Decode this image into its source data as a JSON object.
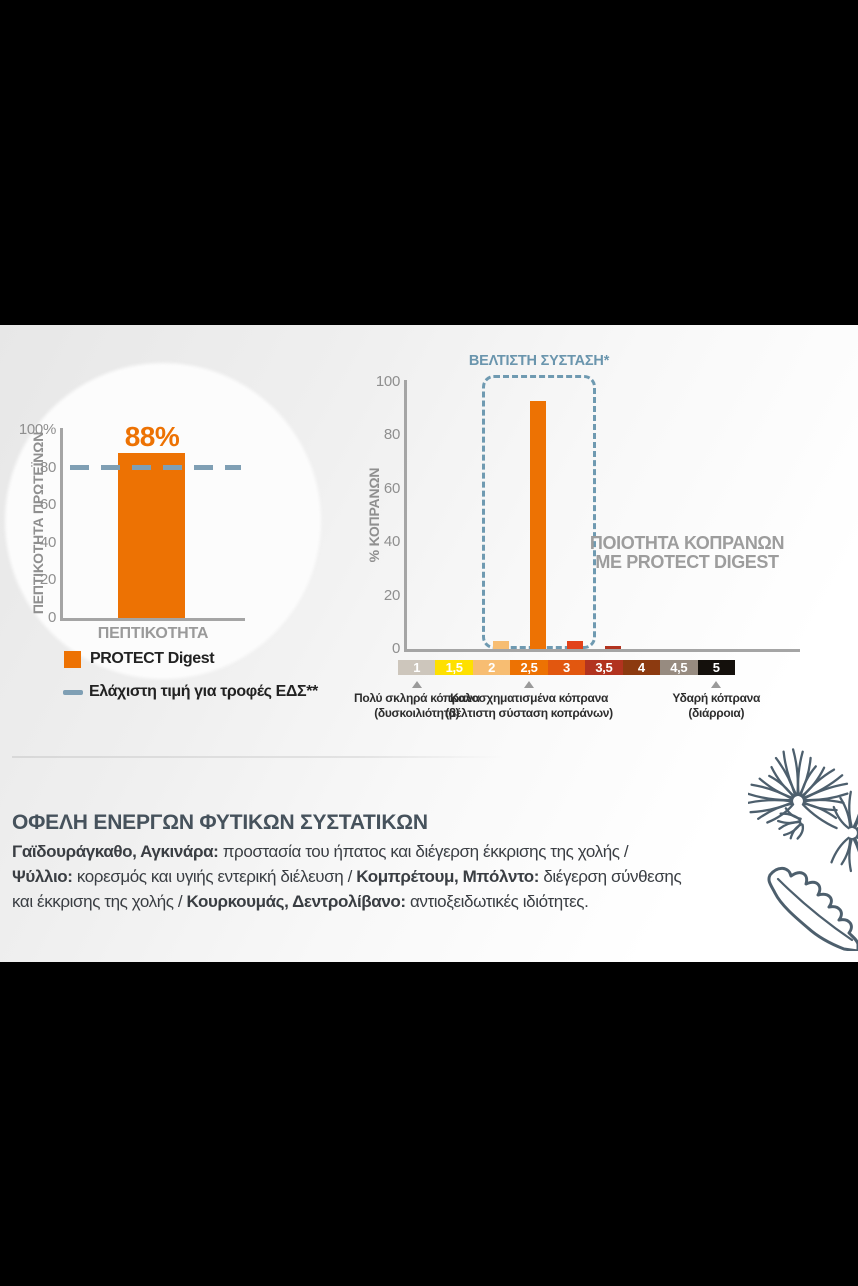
{
  "colors": {
    "orange": "#ed7203",
    "light_orange": "#f7bd72",
    "red_orange": "#e2421a",
    "dark_red": "#b2331f",
    "yellow": "#fee000",
    "tan": "#cdc6bc",
    "brown": "#8c3a10",
    "gray_brown": "#978b80",
    "black_seg": "#14100c",
    "reference_blue": "#7f9fb4",
    "zone_blue": "#6f9ab1",
    "title_blue": "#6a95ad",
    "axis_gray": "#a5a5a5",
    "heading_slate": "#46525c",
    "thistle_ink": "#4d5f6d"
  },
  "chart_data": [
    {
      "type": "bar",
      "title": "",
      "categories": [
        "ΠΕΠΤΙΚΟΤΗΤΑ"
      ],
      "values": [
        88
      ],
      "bar_label": "88%",
      "bar_color": "#ed7203",
      "xlabel": "",
      "ylabel": "ΠΕΠΤΙΚΟΤΗΤΑ ΠΡΩΤΕΪΝΩΝ",
      "ylim": [
        0,
        100
      ],
      "yticks": [
        {
          "value": 0,
          "label": "0"
        },
        {
          "value": 20,
          "label": "20"
        },
        {
          "value": 40,
          "label": "40"
        },
        {
          "value": 60,
          "label": "60"
        },
        {
          "value": 80,
          "label": "80"
        },
        {
          "value": 100,
          "label": "100%"
        }
      ],
      "grid": false,
      "reference_line": {
        "value": 80,
        "style": "dashed",
        "color": "#7f9fb4",
        "label": "Ελάχιστη τιμή για τροφές ΕΔΣ**"
      },
      "legend": [
        {
          "label": "PROTECT Digest",
          "marker": "square",
          "color": "#ed7203"
        },
        {
          "label": "Ελάχιστη τιμή για τροφές ΕΔΣ**",
          "marker": "dash",
          "color": "#7f9fb4"
        }
      ],
      "legend_position": "bottom-left"
    },
    {
      "type": "bar",
      "title": "",
      "categories": [
        "1",
        "1,5",
        "2",
        "2,5",
        "3",
        "3,5",
        "4",
        "4,5",
        "5"
      ],
      "values": [
        0,
        0,
        3,
        93,
        3,
        1,
        0,
        0,
        0
      ],
      "bar_colors": [
        "",
        "",
        "#f7bd72",
        "#ed7203",
        "#e2421a",
        "#b2331f",
        "",
        "",
        ""
      ],
      "xlabel": "",
      "ylabel": "% ΚΟΠΡΑΝΩΝ",
      "ylim": [
        0,
        100
      ],
      "yticks": [
        {
          "value": 0,
          "label": "0"
        },
        {
          "value": 20,
          "label": "20"
        },
        {
          "value": 40,
          "label": "40"
        },
        {
          "value": 60,
          "label": "60"
        },
        {
          "value": 80,
          "label": "80"
        },
        {
          "value": 100,
          "label": "100"
        }
      ],
      "grid": false,
      "optimal_zone": {
        "label": "ΒΕΛΤΙΣΤΗ ΣΥΣΤΑΣΗ*",
        "from_category": "2",
        "to_category": "3",
        "style": "dashed",
        "color": "#6f9ab1"
      },
      "annotation_lines": [
        "ΠΟΙΟΤΗΤΑ ΚΟΠΡΑΝΩΝ",
        "ΜΕ PROTECT DIGEST"
      ],
      "scale_segments": [
        {
          "label": "1",
          "color": "#cdc6bc"
        },
        {
          "label": "1,5",
          "color": "#fee000"
        },
        {
          "label": "2",
          "color": "#f7bd72"
        },
        {
          "label": "2,5",
          "color": "#ed7203"
        },
        {
          "label": "3",
          "color": "#e2570f"
        },
        {
          "label": "3,5",
          "color": "#b2331f"
        },
        {
          "label": "4",
          "color": "#8c3a10"
        },
        {
          "label": "4,5",
          "color": "#978b80"
        },
        {
          "label": "5",
          "color": "#14100c"
        }
      ],
      "axis_markers": [
        {
          "position": "1",
          "lines": [
            "Πολύ σκληρά κόπρανα",
            "(δυσκοιλιότητα)"
          ]
        },
        {
          "position": "2,5",
          "lines": [
            "Καλοσχηματισμένα κόπρανα",
            "(βέλτιστη σύσταση κοπράνων)"
          ]
        },
        {
          "position": "5",
          "lines": [
            "Υδαρή κόπρανα",
            "(διάρροια)"
          ]
        }
      ]
    }
  ],
  "benefits": {
    "heading": "ΟΦΕΛΗ ΕΝΕΡΓΩΝ ΦΥΤΙΚΩΝ ΣΥΣΤΑΤΙΚΩΝ",
    "segments": [
      {
        "text": "Γαϊδουράγκαθο, Αγκινάρα:",
        "bold": true
      },
      {
        "text": " προστασία του ήπατος και διέγερση έκκρισης της χολής / ",
        "bold": false
      },
      {
        "text": "Ψύλλιο:",
        "bold": true
      },
      {
        "text": " κορεσμός και υγιής εντερική διέλευση / ",
        "bold": false
      },
      {
        "text": "Κομπρέτουμ, Μπόλντο:",
        "bold": true
      },
      {
        "text": " διέγερση σύνθεσης και έκκρισης της χολής / ",
        "bold": false
      },
      {
        "text": "Κουρκουμάς, Δεντρολίβανο:",
        "bold": true
      },
      {
        "text": " αντιοξειδωτικές ιδιότητες.",
        "bold": false
      }
    ]
  },
  "decor": {
    "illustration": "thistle-line-drawing"
  }
}
